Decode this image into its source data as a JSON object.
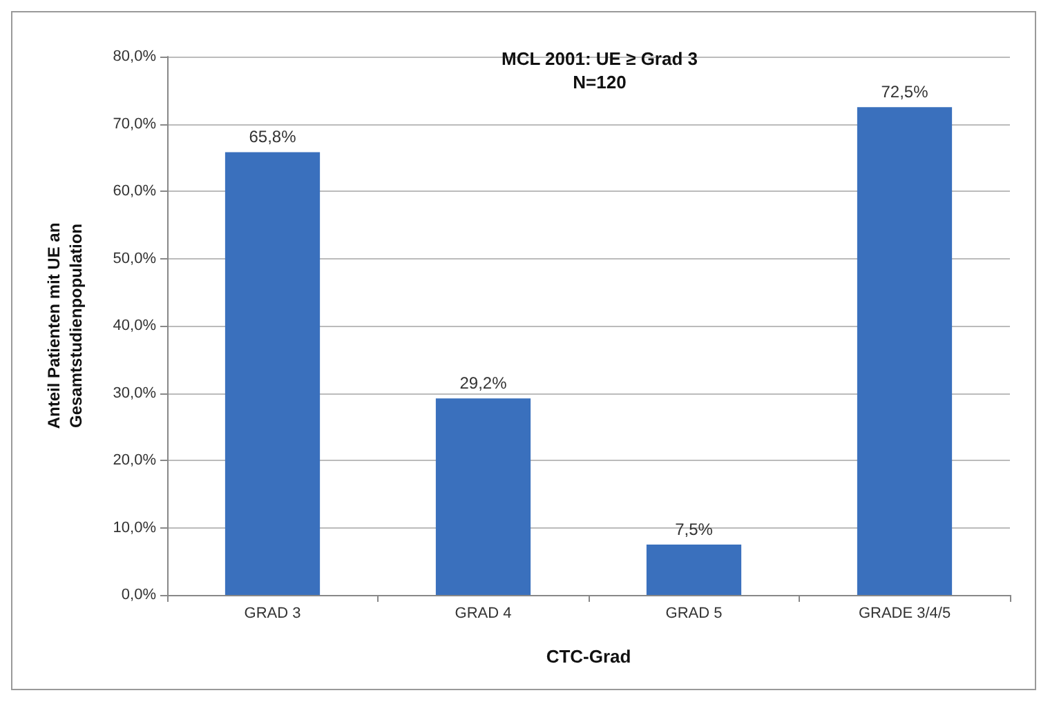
{
  "chart_data": {
    "type": "bar",
    "title": "MCL 2001: UE ≥ Grad 3",
    "subtitle": "N=120",
    "xlabel": "CTC-Grad",
    "ylabel": "Anteil Patienten mit UE an\nGesamtstudienpopulation",
    "categories": [
      "GRAD 3",
      "GRAD 4",
      "GRAD 5",
      "GRADE 3/4/5"
    ],
    "values": [
      65.8,
      29.2,
      7.5,
      72.5
    ],
    "value_labels": [
      "65,8%",
      "29,2%",
      "7,5%",
      "72,5%"
    ],
    "color": "#3a70bd",
    "ylim": [
      0,
      80
    ],
    "yticks": [
      {
        "value": 0,
        "label": "0,0%"
      },
      {
        "value": 10,
        "label": "10,0%"
      },
      {
        "value": 20,
        "label": "20,0%"
      },
      {
        "value": 30,
        "label": "30,0%"
      },
      {
        "value": 40,
        "label": "40,0%"
      },
      {
        "value": 50,
        "label": "50,0%"
      },
      {
        "value": 60,
        "label": "60,0%"
      },
      {
        "value": 70,
        "label": "70,0%"
      },
      {
        "value": 80,
        "label": "80,0%"
      }
    ],
    "grid": "y"
  }
}
